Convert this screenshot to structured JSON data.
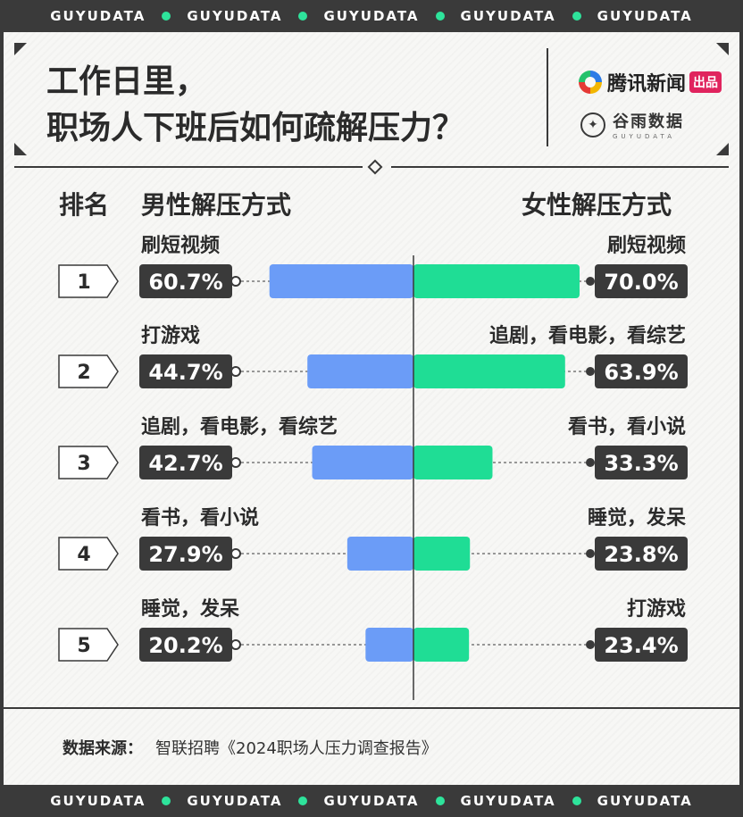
{
  "ribbon": {
    "word": "GUYUDATA"
  },
  "title": {
    "line1": "工作日里，",
    "line2": "职场人下班后如何疏解压力？"
  },
  "brand": {
    "tencent_name": "腾讯新闻",
    "tencent_tag": "出品",
    "guyu_name": "谷雨数据",
    "guyu_sub": "GUYUDATA"
  },
  "headers": {
    "rank": "排名",
    "male": "男性解压方式",
    "female": "女性解压方式"
  },
  "source": {
    "label": "数据来源：",
    "text": "智联招聘《2024职场人压力调查报告》"
  },
  "colors": {
    "male": "#6b9cf7",
    "female": "#1fdd95",
    "value_box": "#3a3a3a"
  },
  "chart_data": {
    "type": "bar",
    "title": "工作日里，职场人下班后如何疏解压力？",
    "categories": [
      "1",
      "2",
      "3",
      "4",
      "5"
    ],
    "series": [
      {
        "name": "男性解压方式",
        "labels": [
          "刷短视频",
          "打游戏",
          "追剧，看电影，看综艺",
          "看书，看小说",
          "睡觉，发呆"
        ],
        "values": [
          60.7,
          44.7,
          42.7,
          27.9,
          20.2
        ],
        "display": [
          "60.7%",
          "44.7%",
          "42.7%",
          "27.9%",
          "20.2%"
        ]
      },
      {
        "name": "女性解压方式",
        "labels": [
          "刷短视频",
          "追剧，看电影，看综艺",
          "看书，看小说",
          "睡觉，发呆",
          "打游戏"
        ],
        "values": [
          70.0,
          63.9,
          33.3,
          23.8,
          23.4
        ],
        "display": [
          "70.0%",
          "63.9%",
          "33.3%",
          "23.8%",
          "23.4%"
        ]
      }
    ],
    "xlim": [
      0,
      70
    ]
  }
}
